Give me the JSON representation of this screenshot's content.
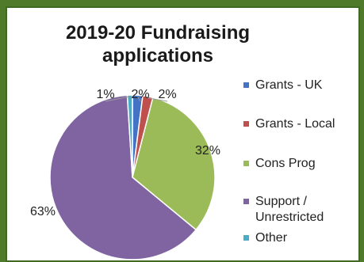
{
  "chart_data": {
    "type": "pie",
    "title_lines": [
      "2019-20 Fundraising",
      "applications"
    ],
    "series": [
      {
        "name": "Grants - UK",
        "value": 2,
        "label": "2%",
        "color": "#4472c4"
      },
      {
        "name": "Grants - Local",
        "value": 2,
        "label": "2%",
        "color": "#c0504d"
      },
      {
        "name": "Cons Prog",
        "value": 32,
        "label": "32%",
        "color": "#9bbb59"
      },
      {
        "name": "Support /\nUnrestricted",
        "value": 63,
        "label": "63%",
        "color": "#8064a2"
      },
      {
        "name": "Other",
        "value": 1,
        "label": "1%",
        "color": "#4bacc6"
      }
    ],
    "legend_position": "right"
  }
}
